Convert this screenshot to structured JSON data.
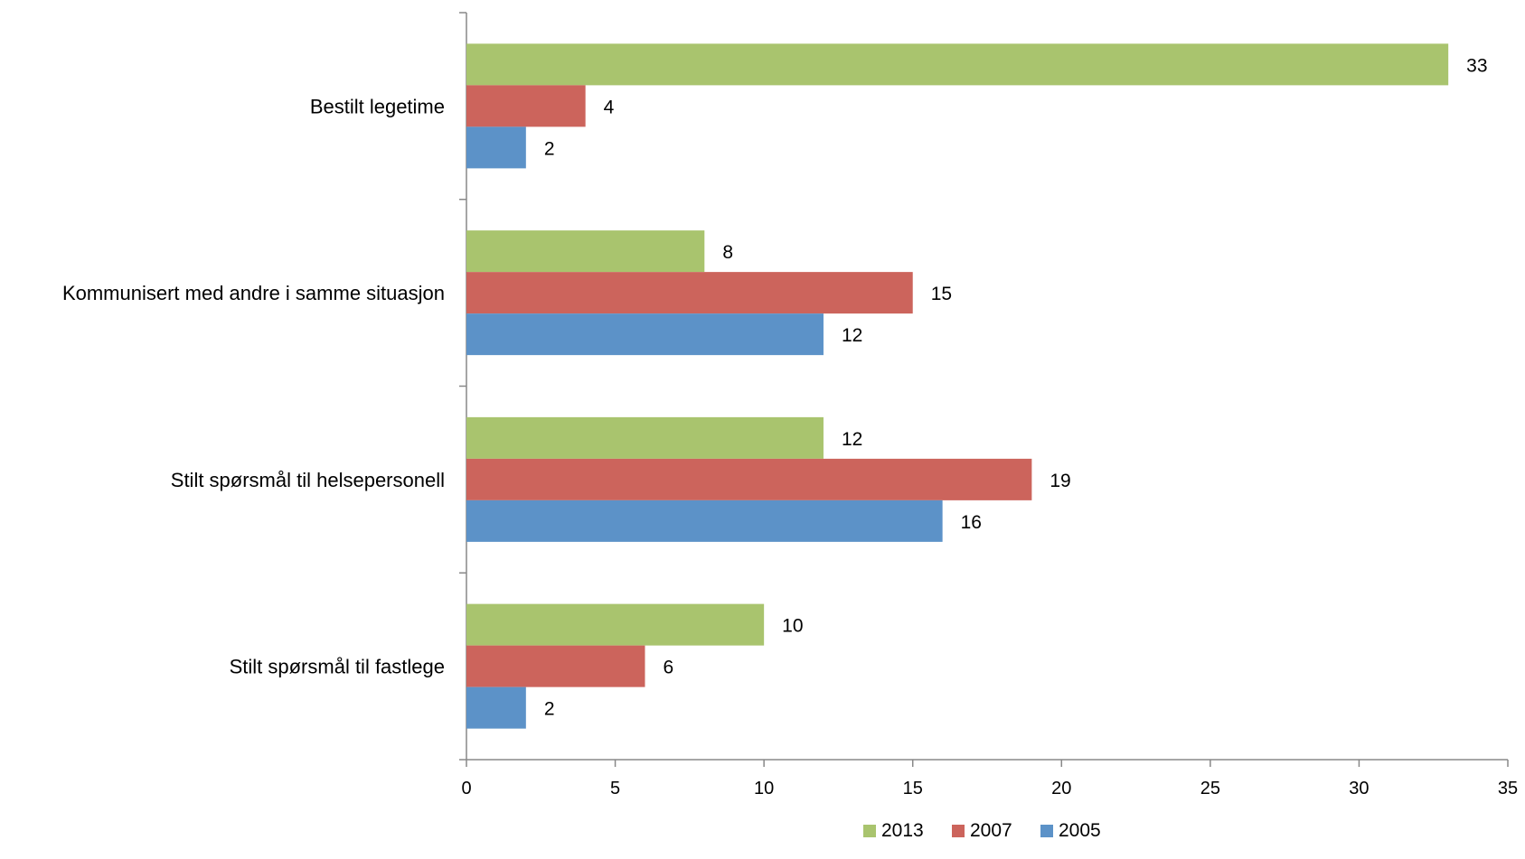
{
  "chart_data": {
    "type": "bar",
    "orientation": "horizontal",
    "categories": [
      "Bestilt legetime",
      "Kommunisert med andre i samme situasjon",
      "Stilt spørsmål til helsepersonell",
      "Stilt spørsmål til fastlege"
    ],
    "series": [
      {
        "name": "2013",
        "color": "#a9c46e",
        "values": [
          33,
          8,
          12,
          10
        ]
      },
      {
        "name": "2007",
        "color": "#cc645c",
        "values": [
          4,
          15,
          19,
          6
        ]
      },
      {
        "name": "2005",
        "color": "#5c92c8",
        "values": [
          2,
          12,
          16,
          2
        ]
      }
    ],
    "xlim": [
      0,
      35
    ],
    "xticks": [
      0,
      5,
      10,
      15,
      20,
      25,
      30,
      35
    ],
    "xlabel": "",
    "ylabel": "",
    "title": "",
    "grid": false,
    "data_labels": true,
    "legend": {
      "position": "bottom",
      "order": [
        "2013",
        "2007",
        "2005"
      ]
    }
  }
}
